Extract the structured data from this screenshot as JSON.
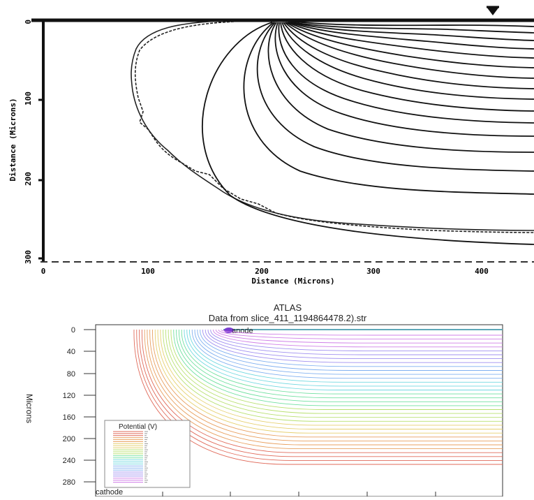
{
  "top_figure": {
    "y_axis_label": "Distance (Microns)",
    "x_axis_label": "Distance (Microns)",
    "y_ticks": [
      "0",
      "100",
      "200",
      "300"
    ],
    "x_ticks": [
      "0",
      "100",
      "200",
      "300",
      "400"
    ]
  },
  "bottom_figure": {
    "title": "ATLAS",
    "subtitle": "Data from slice_411_1194864478.2).str",
    "y_axis_label": "Microns",
    "y_ticks": [
      "0",
      "40",
      "80",
      "120",
      "160",
      "200",
      "240",
      "280"
    ],
    "anode_label": "anode",
    "cathode_label": "cathode",
    "legend_title": "Potential (V)"
  },
  "colors": {
    "top_lines": "#111111",
    "anode_line": "#5fa8b8",
    "contour_palette": [
      "#e06a5a",
      "#e8a060",
      "#e6d070",
      "#b8e070",
      "#70e0a0",
      "#70d8e0",
      "#80b0f0",
      "#a090f0",
      "#d080e8"
    ]
  }
}
